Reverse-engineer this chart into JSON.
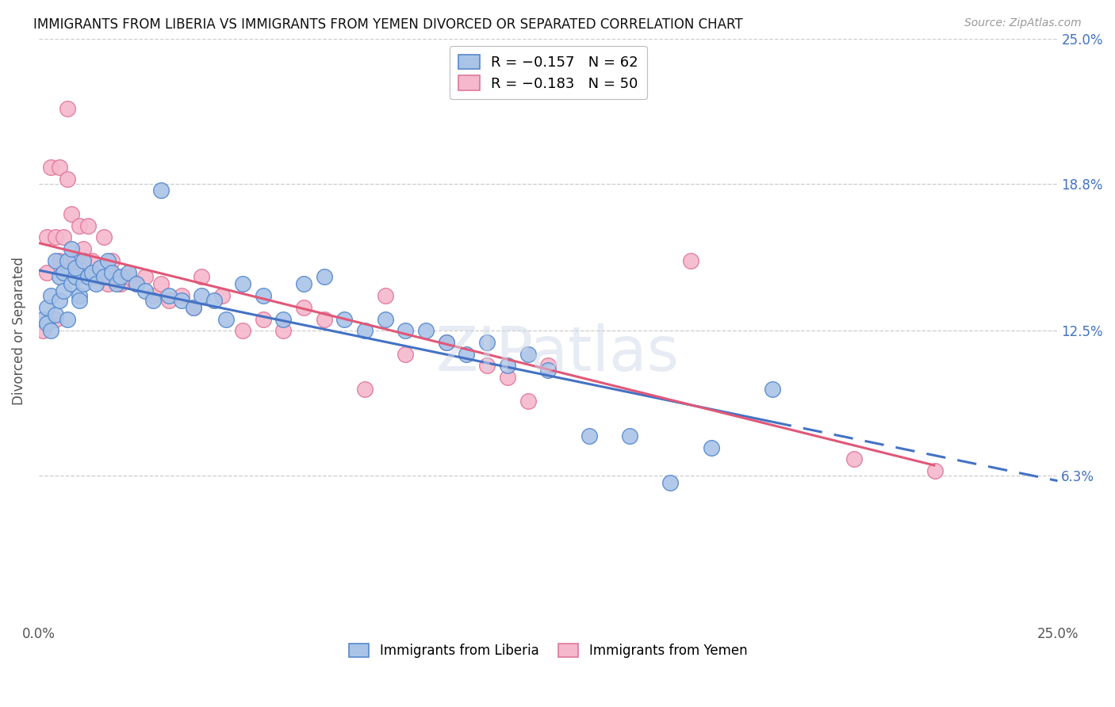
{
  "title": "IMMIGRANTS FROM LIBERIA VS IMMIGRANTS FROM YEMEN DIVORCED OR SEPARATED CORRELATION CHART",
  "source": "Source: ZipAtlas.com",
  "ylabel": "Divorced or Separated",
  "xmin": 0.0,
  "xmax": 0.25,
  "ymin": 0.0,
  "ymax": 0.25,
  "yticks": [
    0.0,
    0.063,
    0.125,
    0.188,
    0.25
  ],
  "ytick_labels": [
    "",
    "6.3%",
    "12.5%",
    "18.8%",
    "25.0%"
  ],
  "xticks": [
    0.0,
    0.0625,
    0.125,
    0.1875,
    0.25
  ],
  "xtick_labels": [
    "0.0%",
    "",
    "",
    "",
    "25.0%"
  ],
  "liberia_color": "#aac4e8",
  "liberia_edge_color": "#5588cc",
  "yemen_color": "#f5b8cc",
  "yemen_edge_color": "#e07898",
  "liberia_line_color": "#4472c4",
  "yemen_line_color": "#e05878",
  "legend_liberia_label": "R = −0.157   N = 62",
  "legend_yemen_label": "R = −0.183   N = 50",
  "legend_xlabel_liberia": "Immigrants from Liberia",
  "legend_xlabel_yemen": "Immigrants from Yemen",
  "liberia_x": [
    0.001,
    0.002,
    0.002,
    0.003,
    0.003,
    0.004,
    0.004,
    0.005,
    0.005,
    0.006,
    0.006,
    0.007,
    0.007,
    0.008,
    0.008,
    0.009,
    0.009,
    0.01,
    0.01,
    0.011,
    0.011,
    0.012,
    0.013,
    0.014,
    0.015,
    0.016,
    0.017,
    0.018,
    0.019,
    0.02,
    0.022,
    0.024,
    0.026,
    0.028,
    0.03,
    0.032,
    0.035,
    0.038,
    0.04,
    0.043,
    0.046,
    0.05,
    0.055,
    0.06,
    0.065,
    0.07,
    0.075,
    0.08,
    0.085,
    0.09,
    0.095,
    0.1,
    0.105,
    0.11,
    0.115,
    0.12,
    0.125,
    0.135,
    0.145,
    0.155,
    0.165,
    0.18
  ],
  "liberia_y": [
    0.13,
    0.128,
    0.135,
    0.14,
    0.125,
    0.155,
    0.132,
    0.148,
    0.138,
    0.15,
    0.142,
    0.155,
    0.13,
    0.145,
    0.16,
    0.148,
    0.152,
    0.14,
    0.138,
    0.155,
    0.145,
    0.148,
    0.15,
    0.145,
    0.152,
    0.148,
    0.155,
    0.15,
    0.145,
    0.148,
    0.15,
    0.145,
    0.142,
    0.138,
    0.185,
    0.14,
    0.138,
    0.135,
    0.14,
    0.138,
    0.13,
    0.145,
    0.14,
    0.13,
    0.145,
    0.148,
    0.13,
    0.125,
    0.13,
    0.125,
    0.125,
    0.12,
    0.115,
    0.12,
    0.11,
    0.115,
    0.108,
    0.08,
    0.08,
    0.06,
    0.075,
    0.1
  ],
  "yemen_x": [
    0.001,
    0.002,
    0.002,
    0.003,
    0.004,
    0.004,
    0.005,
    0.005,
    0.006,
    0.007,
    0.007,
    0.008,
    0.009,
    0.01,
    0.011,
    0.012,
    0.013,
    0.014,
    0.015,
    0.016,
    0.017,
    0.018,
    0.019,
    0.02,
    0.022,
    0.024,
    0.026,
    0.028,
    0.03,
    0.032,
    0.035,
    0.038,
    0.04,
    0.045,
    0.05,
    0.055,
    0.06,
    0.065,
    0.07,
    0.08,
    0.085,
    0.09,
    0.1,
    0.11,
    0.115,
    0.12,
    0.125,
    0.16,
    0.2,
    0.22
  ],
  "yemen_y": [
    0.125,
    0.15,
    0.165,
    0.195,
    0.13,
    0.165,
    0.155,
    0.195,
    0.165,
    0.22,
    0.19,
    0.175,
    0.155,
    0.17,
    0.16,
    0.17,
    0.155,
    0.148,
    0.148,
    0.165,
    0.145,
    0.155,
    0.148,
    0.145,
    0.148,
    0.145,
    0.148,
    0.14,
    0.145,
    0.138,
    0.14,
    0.135,
    0.148,
    0.14,
    0.125,
    0.13,
    0.125,
    0.135,
    0.13,
    0.1,
    0.14,
    0.115,
    0.12,
    0.11,
    0.105,
    0.095,
    0.11,
    0.155,
    0.07,
    0.065
  ]
}
